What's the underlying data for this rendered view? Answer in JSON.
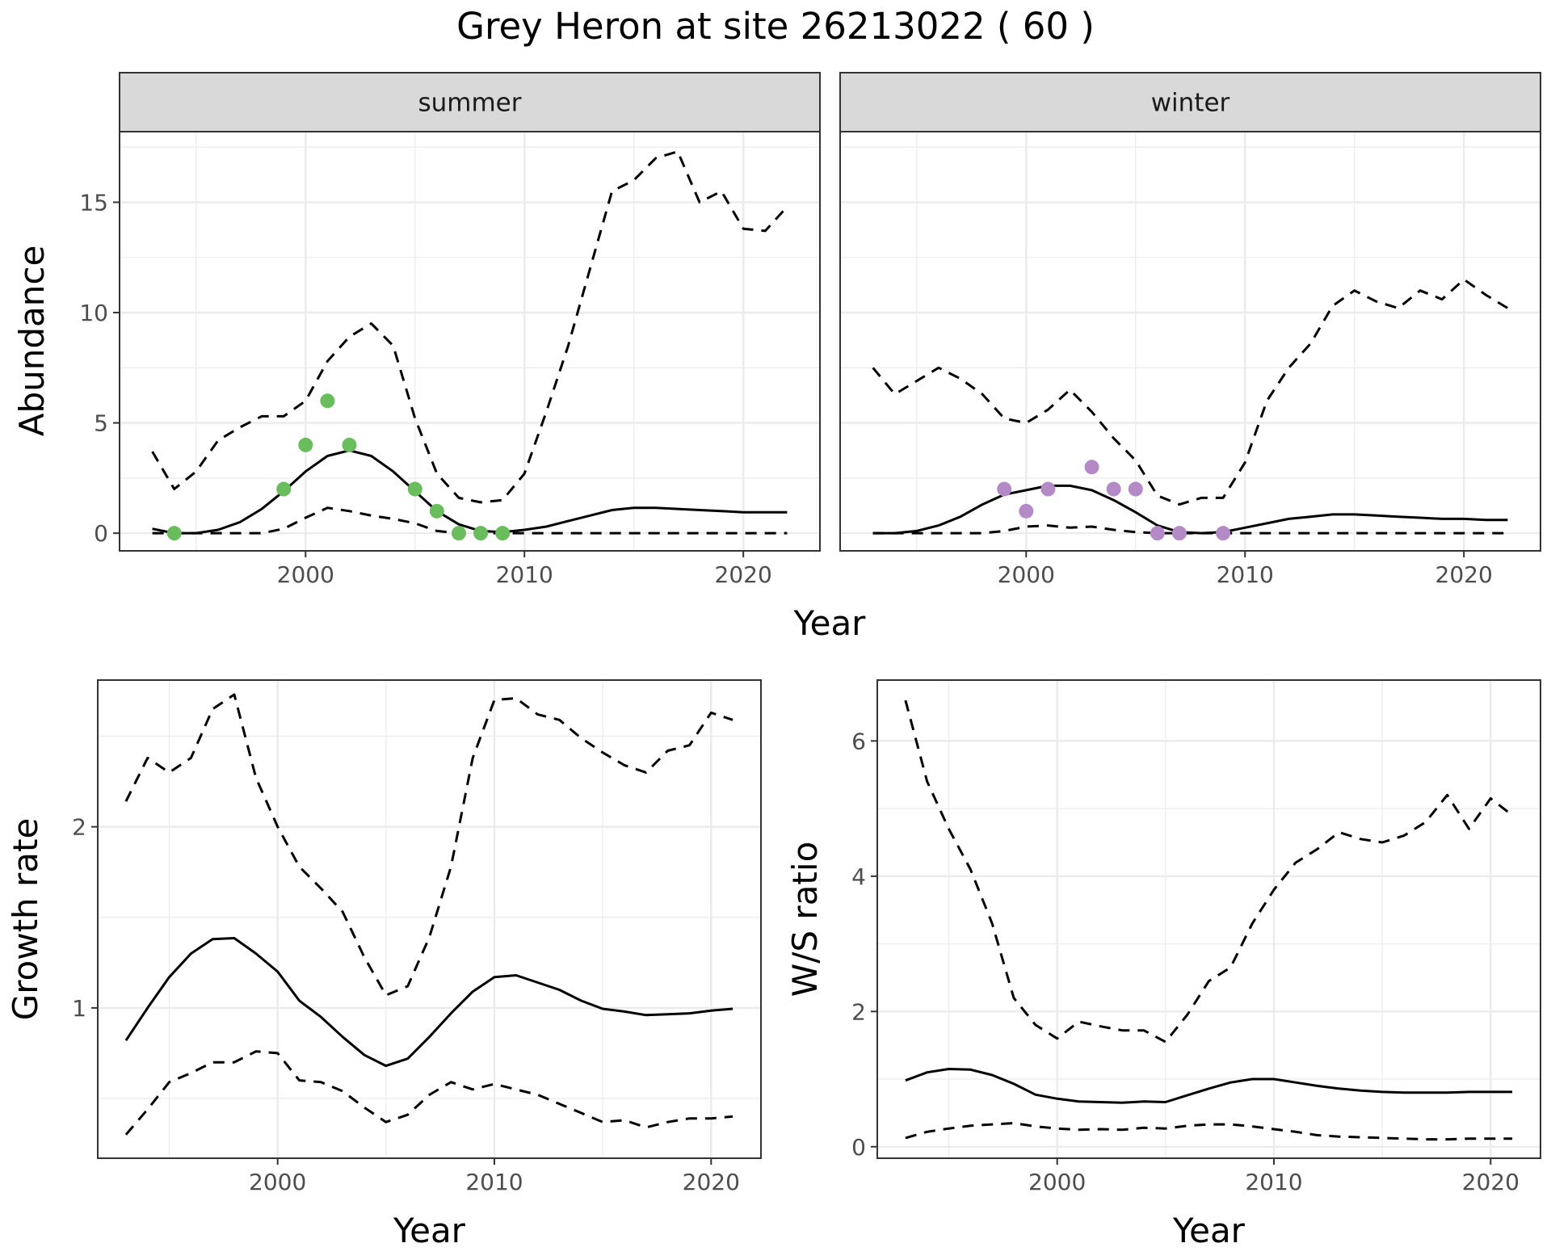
{
  "title": "Grey Heron at site 26213022 ( 60 )",
  "colors": {
    "summer_points": "#6abd5c",
    "winter_points": "#b48ac6",
    "lines": "#000000",
    "strip_fill": "#d9d9d9",
    "grid": "#ebebeb",
    "panel_border": "#333333"
  },
  "chart_data": [
    {
      "type": "line",
      "facet": "summer",
      "xlabel": "Year",
      "ylabel": "Abundance",
      "xlim": [
        1991.5,
        2023.5
      ],
      "ylim": [
        -0.8,
        18.2
      ],
      "xticks": [
        2000,
        2010,
        2020
      ],
      "yticks": [
        0,
        5,
        10,
        15
      ],
      "series": [
        {
          "role": "estimate",
          "style": "solid",
          "x": [
            1993,
            1994,
            1995,
            1996,
            1997,
            1998,
            1999,
            2000,
            2001,
            2002,
            2003,
            2004,
            2005,
            2006,
            2007,
            2008,
            2009,
            2010,
            2011,
            2012,
            2013,
            2014,
            2015,
            2016,
            2017,
            2018,
            2019,
            2020,
            2021,
            2022
          ],
          "y": [
            0.2,
            0.0,
            0.0,
            0.15,
            0.5,
            1.1,
            1.9,
            2.8,
            3.5,
            3.75,
            3.5,
            2.8,
            1.9,
            1.0,
            0.4,
            0.1,
            0.05,
            0.15,
            0.3,
            0.55,
            0.8,
            1.05,
            1.15,
            1.15,
            1.1,
            1.05,
            1.0,
            0.95,
            0.95,
            0.95
          ]
        },
        {
          "role": "upper",
          "style": "dashed",
          "x": [
            1993,
            1994,
            1995,
            1996,
            1997,
            1998,
            1999,
            2000,
            2001,
            2002,
            2003,
            2004,
            2005,
            2006,
            2007,
            2008,
            2009,
            2010,
            2011,
            2012,
            2013,
            2014,
            2015,
            2016,
            2017,
            2018,
            2019,
            2020,
            2021,
            2022
          ],
          "y": [
            3.7,
            2.0,
            2.8,
            4.2,
            4.8,
            5.3,
            5.3,
            6.0,
            7.8,
            8.9,
            9.5,
            8.5,
            5.2,
            2.7,
            1.6,
            1.4,
            1.5,
            2.7,
            5.5,
            8.5,
            12.0,
            15.5,
            16.0,
            17.0,
            17.3,
            15.0,
            15.5,
            13.8,
            13.7,
            14.8
          ]
        },
        {
          "role": "lower",
          "style": "dashed",
          "x": [
            1993,
            1994,
            1995,
            1996,
            1997,
            1998,
            1999,
            2000,
            2001,
            2002,
            2003,
            2004,
            2005,
            2006,
            2007,
            2008,
            2009,
            2010,
            2011,
            2012,
            2013,
            2014,
            2015,
            2016,
            2017,
            2018,
            2019,
            2020,
            2021,
            2022
          ],
          "y": [
            0,
            0,
            0,
            0,
            0,
            0,
            0.2,
            0.7,
            1.15,
            1.0,
            0.8,
            0.65,
            0.45,
            0.1,
            0,
            0,
            0,
            0,
            0,
            0,
            0,
            0,
            0,
            0,
            0,
            0,
            0,
            0,
            0,
            0
          ]
        }
      ],
      "points": {
        "x": [
          1994,
          1999,
          2000,
          2001,
          2002,
          2005,
          2006,
          2007,
          2008,
          2009
        ],
        "y": [
          0,
          2,
          4,
          6,
          4,
          2,
          1,
          0,
          0,
          0
        ]
      }
    },
    {
      "type": "line",
      "facet": "winter",
      "xlabel": "Year",
      "ylabel": "Abundance",
      "xlim": [
        1991.5,
        2023.5
      ],
      "ylim": [
        -0.8,
        18.2
      ],
      "xticks": [
        2000,
        2010,
        2020
      ],
      "yticks": [
        0,
        5,
        10,
        15
      ],
      "series": [
        {
          "role": "estimate",
          "style": "solid",
          "x": [
            1993,
            1994,
            1995,
            1996,
            1997,
            1998,
            1999,
            2000,
            2001,
            2002,
            2003,
            2004,
            2005,
            2006,
            2007,
            2008,
            2009,
            2010,
            2011,
            2012,
            2013,
            2014,
            2015,
            2016,
            2017,
            2018,
            2019,
            2020,
            2021,
            2022
          ],
          "y": [
            0,
            0,
            0.1,
            0.35,
            0.75,
            1.3,
            1.75,
            1.95,
            2.15,
            2.15,
            1.95,
            1.5,
            0.95,
            0.35,
            0.05,
            0,
            0.05,
            0.25,
            0.45,
            0.65,
            0.75,
            0.85,
            0.85,
            0.8,
            0.75,
            0.7,
            0.65,
            0.65,
            0.6,
            0.6
          ]
        },
        {
          "role": "upper",
          "style": "dashed",
          "x": [
            1993,
            1994,
            1995,
            1996,
            1997,
            1998,
            1999,
            2000,
            2001,
            2002,
            2003,
            2004,
            2005,
            2006,
            2007,
            2008,
            2009,
            2010,
            2011,
            2012,
            2013,
            2014,
            2015,
            2016,
            2017,
            2018,
            2019,
            2020,
            2021,
            2022
          ],
          "y": [
            7.5,
            6.3,
            6.9,
            7.5,
            7.0,
            6.3,
            5.2,
            5.0,
            5.6,
            6.5,
            5.5,
            4.3,
            3.3,
            1.7,
            1.3,
            1.6,
            1.6,
            3.2,
            6.0,
            7.5,
            8.6,
            10.3,
            11.0,
            10.5,
            10.2,
            11.0,
            10.6,
            11.5,
            10.8,
            10.2
          ]
        },
        {
          "role": "lower",
          "style": "dashed",
          "x": [
            1993,
            1994,
            1995,
            1996,
            1997,
            1998,
            1999,
            2000,
            2001,
            2002,
            2003,
            2004,
            2005,
            2006,
            2007,
            2008,
            2009,
            2010,
            2011,
            2012,
            2013,
            2014,
            2015,
            2016,
            2017,
            2018,
            2019,
            2020,
            2021,
            2022
          ],
          "y": [
            0,
            0,
            0,
            0,
            0,
            0,
            0.1,
            0.3,
            0.35,
            0.25,
            0.3,
            0.15,
            0.05,
            0,
            0,
            0,
            0,
            0,
            0,
            0,
            0,
            0,
            0,
            0,
            0,
            0,
            0,
            0,
            0,
            0
          ]
        }
      ],
      "points": {
        "x": [
          1999,
          2000,
          2001,
          2003,
          2004,
          2005,
          2006,
          2007,
          2009
        ],
        "y": [
          2,
          1,
          2,
          3,
          2,
          2,
          0,
          0,
          0
        ]
      }
    },
    {
      "type": "line",
      "xlabel": "Year",
      "ylabel": "Growth rate",
      "xlim": [
        1991.7,
        2022.3
      ],
      "ylim": [
        0.17,
        2.81
      ],
      "xticks": [
        2000,
        2010,
        2020
      ],
      "yticks": [
        1,
        2
      ],
      "series": [
        {
          "role": "estimate",
          "style": "solid",
          "x": [
            1993,
            1994,
            1995,
            1996,
            1997,
            1998,
            1999,
            2000,
            2001,
            2002,
            2003,
            2004,
            2005,
            2006,
            2007,
            2008,
            2009,
            2010,
            2011,
            2012,
            2013,
            2014,
            2015,
            2016,
            2017,
            2018,
            2019,
            2020,
            2021
          ],
          "y": [
            0.82,
            1.0,
            1.17,
            1.3,
            1.38,
            1.385,
            1.3,
            1.2,
            1.04,
            0.95,
            0.84,
            0.74,
            0.68,
            0.72,
            0.84,
            0.97,
            1.09,
            1.17,
            1.18,
            1.14,
            1.1,
            1.04,
            0.995,
            0.98,
            0.96,
            0.965,
            0.97,
            0.985,
            0.995
          ]
        },
        {
          "role": "upper",
          "style": "dashed",
          "x": [
            1993,
            1994,
            1995,
            1996,
            1997,
            1998,
            1999,
            2000,
            2001,
            2002,
            2003,
            2004,
            2005,
            2006,
            2007,
            2008,
            2009,
            2010,
            2011,
            2012,
            2013,
            2014,
            2015,
            2016,
            2017,
            2018,
            2019,
            2020,
            2021
          ],
          "y": [
            2.14,
            2.38,
            2.3,
            2.38,
            2.65,
            2.73,
            2.27,
            2.0,
            1.78,
            1.66,
            1.53,
            1.28,
            1.07,
            1.12,
            1.39,
            1.78,
            2.38,
            2.7,
            2.71,
            2.62,
            2.59,
            2.49,
            2.41,
            2.34,
            2.3,
            2.42,
            2.45,
            2.63,
            2.59
          ]
        },
        {
          "role": "lower",
          "style": "dashed",
          "x": [
            1993,
            1994,
            1995,
            1996,
            1997,
            1998,
            1999,
            2000,
            2001,
            2002,
            2003,
            2004,
            2005,
            2006,
            2007,
            2008,
            2009,
            2010,
            2011,
            2012,
            2013,
            2014,
            2015,
            2016,
            2017,
            2018,
            2019,
            2020,
            2021
          ],
          "y": [
            0.3,
            0.44,
            0.59,
            0.64,
            0.7,
            0.7,
            0.76,
            0.75,
            0.6,
            0.59,
            0.54,
            0.45,
            0.37,
            0.41,
            0.52,
            0.59,
            0.55,
            0.58,
            0.55,
            0.52,
            0.47,
            0.42,
            0.37,
            0.38,
            0.34,
            0.37,
            0.39,
            0.39,
            0.4
          ]
        }
      ]
    },
    {
      "type": "line",
      "xlabel": "Year",
      "ylabel": "W/S ratio",
      "xlim": [
        1991.7,
        2022.3
      ],
      "ylim": [
        -0.17,
        6.9
      ],
      "xticks": [
        2000,
        2010,
        2020
      ],
      "yticks": [
        0,
        2,
        4,
        6
      ],
      "series": [
        {
          "role": "estimate",
          "style": "solid",
          "x": [
            1993,
            1994,
            1995,
            1996,
            1997,
            1998,
            1999,
            2000,
            2001,
            2002,
            2003,
            2004,
            2005,
            2006,
            2007,
            2008,
            2009,
            2010,
            2011,
            2012,
            2013,
            2014,
            2015,
            2016,
            2017,
            2018,
            2019,
            2020,
            2021
          ],
          "y": [
            0.98,
            1.1,
            1.15,
            1.14,
            1.06,
            0.93,
            0.77,
            0.71,
            0.67,
            0.66,
            0.65,
            0.67,
            0.66,
            0.76,
            0.86,
            0.95,
            1.0,
            1.0,
            0.95,
            0.9,
            0.86,
            0.83,
            0.81,
            0.8,
            0.8,
            0.8,
            0.81,
            0.81,
            0.81
          ]
        },
        {
          "role": "upper",
          "style": "dashed",
          "x": [
            1993,
            1994,
            1995,
            1996,
            1997,
            1998,
            1999,
            2000,
            2001,
            2002,
            2003,
            2004,
            2005,
            2006,
            2007,
            2008,
            2009,
            2010,
            2011,
            2012,
            2013,
            2014,
            2015,
            2016,
            2017,
            2018,
            2019,
            2020,
            2021
          ],
          "y": [
            6.6,
            5.4,
            4.7,
            4.1,
            3.3,
            2.2,
            1.8,
            1.6,
            1.85,
            1.78,
            1.72,
            1.72,
            1.55,
            1.95,
            2.45,
            2.65,
            3.3,
            3.8,
            4.2,
            4.4,
            4.65,
            4.55,
            4.5,
            4.6,
            4.8,
            5.2,
            4.7,
            5.15,
            4.9
          ]
        },
        {
          "role": "lower",
          "style": "dashed",
          "x": [
            1993,
            1994,
            1995,
            1996,
            1997,
            1998,
            1999,
            2000,
            2001,
            2002,
            2003,
            2004,
            2005,
            2006,
            2007,
            2008,
            2009,
            2010,
            2011,
            2012,
            2013,
            2014,
            2015,
            2016,
            2017,
            2018,
            2019,
            2020,
            2021
          ],
          "y": [
            0.13,
            0.22,
            0.27,
            0.31,
            0.33,
            0.35,
            0.3,
            0.27,
            0.25,
            0.26,
            0.25,
            0.28,
            0.27,
            0.31,
            0.33,
            0.33,
            0.3,
            0.26,
            0.22,
            0.17,
            0.15,
            0.14,
            0.13,
            0.12,
            0.11,
            0.11,
            0.12,
            0.12,
            0.12
          ]
        }
      ]
    }
  ]
}
